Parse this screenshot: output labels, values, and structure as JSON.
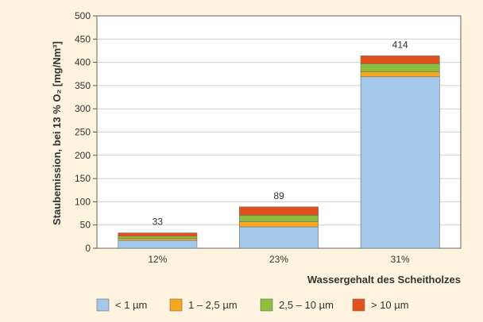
{
  "chart_data": {
    "type": "bar",
    "stacked": true,
    "categories": [
      "12%",
      "23%",
      "31%"
    ],
    "series": [
      {
        "name": "< 1 µm",
        "color": "#a4c8ea",
        "values": [
          17,
          46,
          369
        ]
      },
      {
        "name": "1 – 2,5 µm",
        "color": "#f5a71d",
        "values": [
          4,
          11,
          11
        ]
      },
      {
        "name": "2,5 – 10 µm",
        "color": "#8cbf3f",
        "values": [
          5,
          14,
          17
        ]
      },
      {
        "name": "> 10 µm",
        "color": "#e2501b",
        "values": [
          7,
          18,
          17
        ]
      }
    ],
    "totals": [
      "33",
      "89",
      "414"
    ],
    "xlabel": "Wassergehalt des Scheitholzes",
    "ylabel": "Staubemission, bei 13 % O₂ [mg/Nm³]",
    "ylim": [
      0,
      500
    ],
    "yticks": [
      0,
      50,
      100,
      150,
      200,
      250,
      300,
      350,
      400,
      450,
      500
    ],
    "grid": true,
    "legend_position": "bottom"
  }
}
